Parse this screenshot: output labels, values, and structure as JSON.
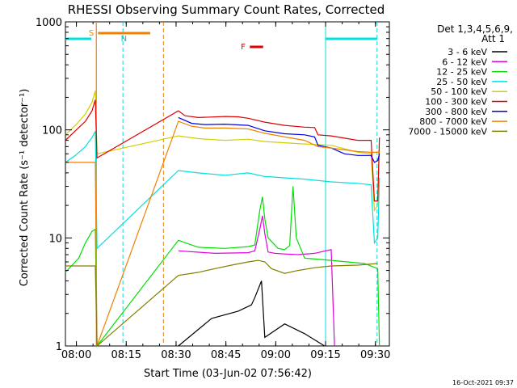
{
  "chart_data": {
    "type": "line",
    "title": "RHESSI Observing Summary Count Rates, Corrected",
    "xlabel": "Start Time (03-Jun-02 07:56:42)",
    "ylabel": "Corrected Count Rate (s⁻¹ detector⁻¹)",
    "yscale": "log",
    "ylim": [
      1,
      1000
    ],
    "xlim_minutes": [
      0,
      97.5
    ],
    "x_start": "07:56:42",
    "x_ticks": [
      {
        "label": "08:00",
        "t": 3.3
      },
      {
        "label": "08:15",
        "t": 18.3
      },
      {
        "label": "08:30",
        "t": 33.3
      },
      {
        "label": "08:45",
        "t": 48.3
      },
      {
        "label": "09:00",
        "t": 63.3
      },
      {
        "label": "09:15",
        "t": 78.3
      },
      {
        "label": "09:30",
        "t": 93.3
      }
    ],
    "y_ticks": [
      {
        "label": "1",
        "v": 1
      },
      {
        "label": "10",
        "v": 10
      },
      {
        "label": "100",
        "v": 100
      },
      {
        "label": "1000",
        "v": 1000
      }
    ],
    "legend_header": [
      "Det 1,3,4,5,6,9,",
      "Att 1"
    ],
    "footer_date": "16-Oct-2021 09:37",
    "flag_labels": [
      "S",
      "N",
      "F"
    ],
    "series": [
      {
        "name": "3 - 6 keV",
        "color": "#000000",
        "points": [
          [
            34,
            1.0
          ],
          [
            44,
            1.8
          ],
          [
            52,
            2.1
          ],
          [
            56,
            2.4
          ],
          [
            57,
            2.8
          ],
          [
            59,
            4.0
          ],
          [
            60,
            1.2
          ],
          [
            66,
            1.6
          ],
          [
            72,
            1.3
          ],
          [
            78,
            1.0
          ]
        ]
      },
      {
        "name": "6 - 12 keV",
        "color": "#e000e0",
        "points": [
          [
            34,
            7.6
          ],
          [
            45,
            7.2
          ],
          [
            55,
            7.3
          ],
          [
            57,
            7.6
          ],
          [
            58.5,
            12
          ],
          [
            59.3,
            16
          ],
          [
            60,
            11
          ],
          [
            61,
            7.4
          ],
          [
            63,
            7.2
          ],
          [
            66,
            7.1
          ],
          [
            70,
            7.0
          ],
          [
            75,
            7.2
          ],
          [
            80,
            7.8
          ],
          [
            81,
            1.0
          ]
        ]
      },
      {
        "name": "12 - 25 keV",
        "color": "#00e000",
        "points": [
          [
            0,
            4.8
          ],
          [
            4,
            6.5
          ],
          [
            6,
            9.0
          ],
          [
            8,
            11.5
          ],
          [
            9,
            12.0
          ],
          [
            9.5,
            1.0
          ],
          [
            34,
            9.5
          ],
          [
            40,
            8.2
          ],
          [
            48,
            8.0
          ],
          [
            55,
            8.3
          ],
          [
            57,
            8.6
          ],
          [
            58.5,
            18
          ],
          [
            59.3,
            24
          ],
          [
            60,
            15
          ],
          [
            61,
            10
          ],
          [
            64,
            8.0
          ],
          [
            66,
            7.8
          ],
          [
            67.5,
            8.5
          ],
          [
            68.5,
            30
          ],
          [
            69.5,
            10
          ],
          [
            72,
            6.5
          ],
          [
            80,
            6.2
          ],
          [
            90,
            5.8
          ],
          [
            94,
            5.2
          ],
          [
            94.5,
            1.0
          ]
        ]
      },
      {
        "name": "25 - 50 keV",
        "color": "#00e0e0",
        "points": [
          [
            0,
            50
          ],
          [
            3,
            58
          ],
          [
            6,
            70
          ],
          [
            8,
            85
          ],
          [
            9,
            97
          ],
          [
            9.5,
            8.0
          ],
          [
            34,
            42
          ],
          [
            40,
            40
          ],
          [
            48,
            38
          ],
          [
            55,
            40
          ],
          [
            60,
            37
          ],
          [
            66,
            36
          ],
          [
            72,
            35
          ],
          [
            80,
            33
          ],
          [
            88,
            32
          ],
          [
            92,
            31
          ],
          [
            93,
            9
          ],
          [
            94,
            10
          ],
          [
            94.5,
            36
          ]
        ]
      },
      {
        "name": "50 - 100 keV",
        "color": "#d0d000",
        "points": [
          [
            0,
            90
          ],
          [
            3,
            110
          ],
          [
            6,
            140
          ],
          [
            8,
            180
          ],
          [
            9,
            230
          ],
          [
            9.5,
            60
          ],
          [
            34,
            88
          ],
          [
            40,
            83
          ],
          [
            48,
            80
          ],
          [
            55,
            82
          ],
          [
            60,
            78
          ],
          [
            66,
            76
          ],
          [
            72,
            74
          ],
          [
            80,
            72
          ],
          [
            88,
            62
          ],
          [
            92,
            60
          ],
          [
            93,
            18
          ],
          [
            94,
            20
          ],
          [
            94.5,
            70
          ]
        ]
      },
      {
        "name": "100 - 300 keV",
        "color": "#e00000",
        "points": [
          [
            0,
            80
          ],
          [
            3,
            98
          ],
          [
            6,
            120
          ],
          [
            8,
            150
          ],
          [
            9,
            190
          ],
          [
            9.5,
            55
          ],
          [
            34,
            150
          ],
          [
            36,
            135
          ],
          [
            40,
            130
          ],
          [
            48,
            133
          ],
          [
            52,
            132
          ],
          [
            55,
            128
          ],
          [
            60,
            118
          ],
          [
            66,
            110
          ],
          [
            72,
            106
          ],
          [
            75,
            105
          ],
          [
            76,
            90
          ],
          [
            80,
            88
          ],
          [
            88,
            80
          ],
          [
            92,
            80
          ],
          [
            93,
            22
          ],
          [
            94,
            22
          ],
          [
            94.5,
            85
          ]
        ]
      },
      {
        "name": "300 - 800 keV",
        "color": "#0000e0",
        "points": [
          [
            34,
            130
          ],
          [
            38,
            115
          ],
          [
            42,
            112
          ],
          [
            48,
            113
          ],
          [
            55,
            110
          ],
          [
            60,
            98
          ],
          [
            66,
            92
          ],
          [
            72,
            90
          ],
          [
            75,
            86
          ],
          [
            76,
            72
          ],
          [
            80,
            68
          ],
          [
            84,
            60
          ],
          [
            88,
            58
          ],
          [
            92,
            58
          ],
          [
            93,
            50
          ],
          [
            94,
            52
          ],
          [
            94.5,
            60
          ]
        ]
      },
      {
        "name": "800 - 7000 keV",
        "color": "#f08000",
        "points": [
          [
            0,
            50
          ],
          [
            9,
            50
          ],
          [
            9.5,
            1.0
          ],
          [
            34,
            120
          ],
          [
            38,
            108
          ],
          [
            42,
            104
          ],
          [
            48,
            104
          ],
          [
            55,
            102
          ],
          [
            60,
            93
          ],
          [
            66,
            86
          ],
          [
            72,
            80
          ],
          [
            76,
            70
          ],
          [
            80,
            68
          ],
          [
            88,
            63
          ],
          [
            92,
            62
          ],
          [
            94.5,
            62
          ]
        ]
      },
      {
        "name": "7000 - 15000 keV",
        "color": "#808000",
        "points": [
          [
            0,
            5.5
          ],
          [
            9,
            5.5
          ],
          [
            9.5,
            1.0
          ],
          [
            34,
            4.5
          ],
          [
            40,
            4.8
          ],
          [
            45,
            5.2
          ],
          [
            50,
            5.6
          ],
          [
            55,
            6.0
          ],
          [
            58,
            6.2
          ],
          [
            60,
            6.0
          ],
          [
            62,
            5.2
          ],
          [
            66,
            4.7
          ],
          [
            70,
            5.0
          ],
          [
            75,
            5.3
          ],
          [
            80,
            5.5
          ],
          [
            88,
            5.6
          ],
          [
            94,
            5.8
          ]
        ]
      }
    ]
  }
}
